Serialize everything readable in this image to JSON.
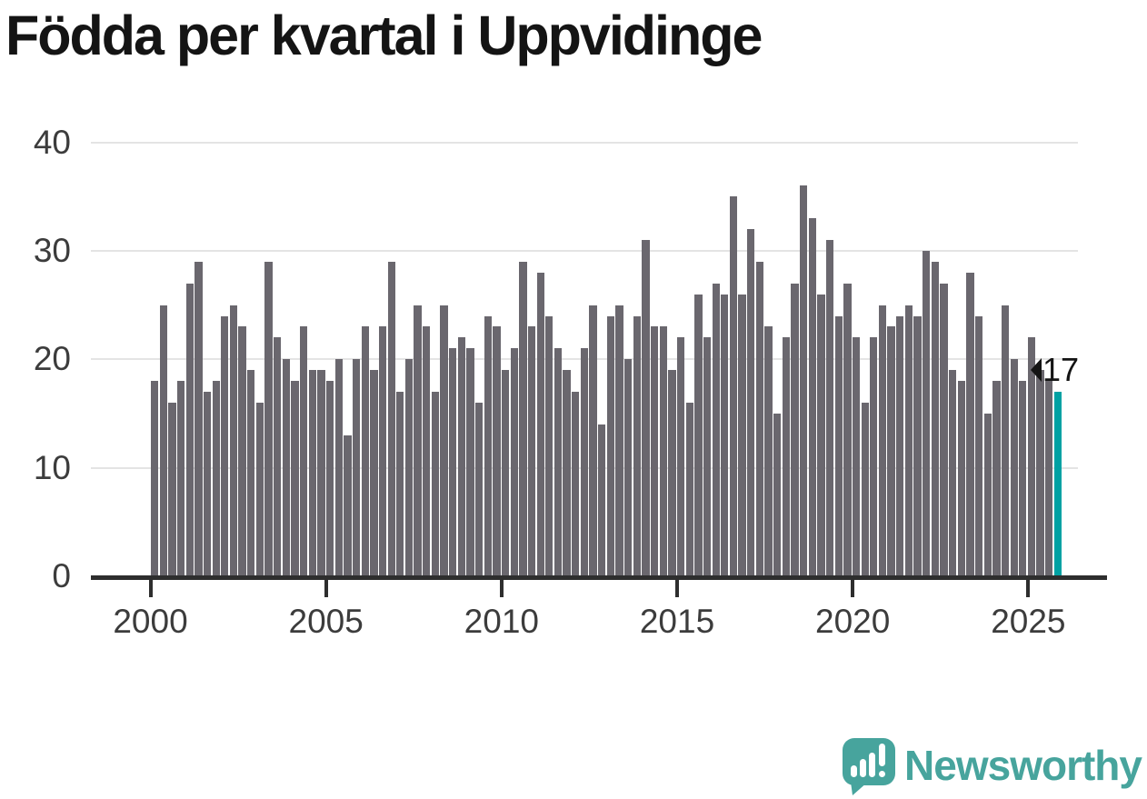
{
  "title": "Födda per kvartal i Uppvidinge",
  "chart_data": {
    "type": "bar",
    "title": "Födda per kvartal i Uppvidinge",
    "x_start": "2000-Q1",
    "x_end": "2025-Q4",
    "frequency": "quarterly",
    "values": [
      18,
      25,
      16,
      18,
      27,
      29,
      17,
      18,
      24,
      25,
      23,
      19,
      16,
      29,
      22,
      20,
      18,
      23,
      19,
      19,
      18,
      20,
      13,
      20,
      23,
      19,
      23,
      29,
      17,
      20,
      25,
      23,
      17,
      25,
      21,
      22,
      21,
      16,
      24,
      23,
      19,
      21,
      29,
      23,
      28,
      24,
      21,
      19,
      17,
      21,
      25,
      14,
      24,
      25,
      20,
      24,
      31,
      23,
      23,
      19,
      22,
      16,
      26,
      22,
      27,
      26,
      35,
      26,
      32,
      29,
      23,
      15,
      22,
      27,
      36,
      33,
      26,
      31,
      24,
      27,
      22,
      16,
      22,
      25,
      23,
      24,
      25,
      24,
      30,
      29,
      27,
      19,
      18,
      28,
      24,
      15,
      18,
      25,
      20,
      18,
      22,
      19,
      18,
      17
    ],
    "highlight_index": 103,
    "highlight_value_label": "17",
    "x_tick_labels": [
      "2000",
      "2005",
      "2010",
      "2015",
      "2020",
      "2025"
    ],
    "y_tick_labels": [
      "0",
      "10",
      "20",
      "30",
      "40"
    ],
    "ylim": [
      0,
      40
    ],
    "grid": "horizontal",
    "legend": "none",
    "bar_color": "#6a676e",
    "highlight_color": "#00a1a3",
    "axis_color": "#2e2e2e",
    "gridline_color": "#e4e4e4"
  },
  "footer": {
    "brand": "Newsworthy",
    "brand_color": "#47a49d",
    "logo_icon": "speech-bubble-bar-chart-icon"
  }
}
